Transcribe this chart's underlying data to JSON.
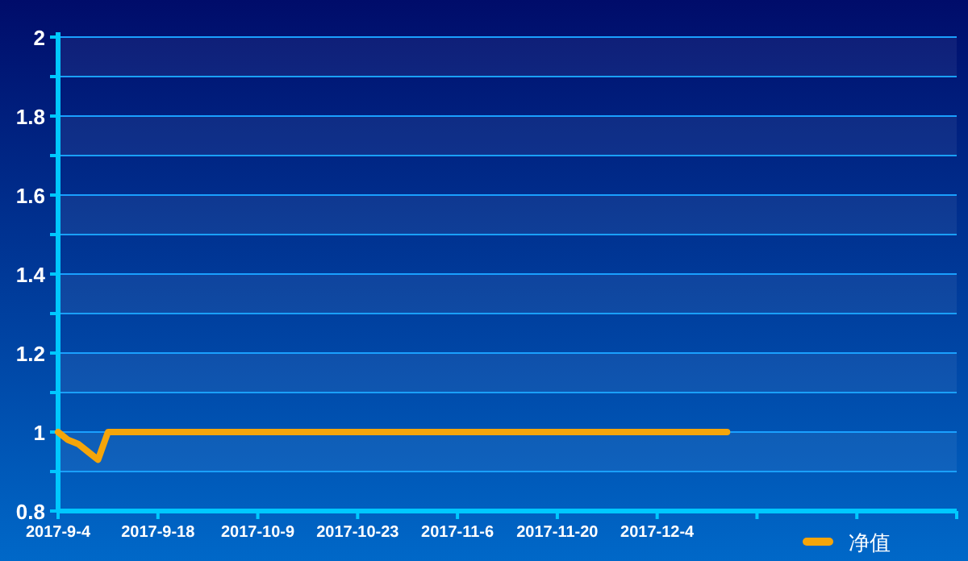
{
  "chart_data": {
    "type": "line",
    "categories": [
      "2017-9-4",
      null,
      null,
      null,
      null,
      null,
      null,
      null,
      null,
      null,
      "2017-9-18",
      null,
      null,
      null,
      null,
      null,
      null,
      null,
      null,
      null,
      "2017-10-9",
      null,
      null,
      null,
      null,
      null,
      null,
      null,
      null,
      null,
      "2017-10-23",
      null,
      null,
      null,
      null,
      null,
      null,
      null,
      null,
      null,
      "2017-11-6",
      null,
      null,
      null,
      null,
      null,
      null,
      null,
      null,
      null,
      "2017-11-20",
      null,
      null,
      null,
      null,
      null,
      null,
      null,
      null,
      null,
      "2017-12-4",
      null,
      null,
      null,
      null,
      null,
      null,
      null,
      null,
      null,
      null,
      null,
      null,
      null,
      null,
      null,
      null,
      null,
      null,
      null,
      null,
      null,
      null,
      null,
      null,
      null,
      null,
      null,
      null,
      null,
      null
    ],
    "series": [
      {
        "name": "净值",
        "color": "#f5a50a",
        "values": [
          1,
          0.98,
          0.97,
          0.95,
          0.93,
          1,
          1,
          1,
          1,
          1,
          1,
          1,
          1,
          1,
          1,
          1,
          1,
          1,
          1,
          1,
          1,
          1,
          1,
          1,
          1,
          1,
          1,
          1,
          1,
          1,
          1,
          1,
          1,
          1,
          1,
          1,
          1,
          1,
          1,
          1,
          1,
          1,
          1,
          1,
          1,
          1,
          1,
          1,
          1,
          1,
          1,
          1,
          1,
          1,
          1,
          1,
          1,
          1,
          1,
          1,
          1,
          1,
          1,
          1,
          1,
          1,
          1,
          1,
          null,
          null,
          null,
          null,
          null,
          null,
          null,
          null,
          null,
          null,
          null,
          null,
          null,
          null,
          null,
          null,
          null,
          null,
          null,
          null,
          null,
          null,
          null
        ]
      }
    ],
    "ylim": [
      0.8,
      2
    ],
    "yticks": [
      0.8,
      {
        "value": 0.9,
        "label": null
      },
      1,
      {
        "value": 1.1,
        "label": null
      },
      1.2,
      {
        "value": 1.3,
        "label": null
      },
      1.4,
      {
        "value": 1.5,
        "label": null
      },
      1.6,
      {
        "value": 1.7,
        "label": null
      },
      1.8,
      {
        "value": 1.9,
        "label": null
      },
      2
    ],
    "grid": "y",
    "legend": "bottom right",
    "marker": "none",
    "line_style": "solid"
  }
}
